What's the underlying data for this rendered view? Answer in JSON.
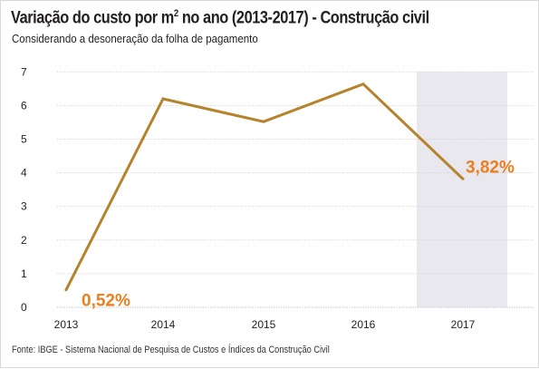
{
  "title_main": "Variação do custo por m",
  "title_sup": "2",
  "title_rest": " no ano (2013-2017) - Construção civil",
  "subtitle": "Considerando a desoneração da folha de pagamento",
  "source": "Fonte: IBGE - Sistema Nacional de Pesquisa de Custos e Índices da Construção Civil",
  "colors": {
    "line": "#b5832c",
    "label": "#ee7d1b",
    "grid": "#d5d5d5",
    "highlight": "#e8e8ee"
  },
  "chart_data": {
    "type": "line",
    "title": "Variação do custo por m² no ano (2013-2017) - Construção civil",
    "subtitle": "Considerando a desoneração da folha de pagamento",
    "xlabel": "",
    "ylabel": "",
    "x": [
      2013,
      2014,
      2015,
      2016,
      2017
    ],
    "series": [
      {
        "name": "",
        "values": [
          0.52,
          6.2,
          5.52,
          6.64,
          3.82
        ]
      }
    ],
    "ylim": [
      0,
      7
    ],
    "yticks": [
      0,
      1,
      2,
      3,
      4,
      5,
      6,
      7
    ],
    "grid": true,
    "highlight_x": 2017,
    "data_labels": [
      {
        "x": 2013,
        "text": "0,52%"
      },
      {
        "x": 2017,
        "text": "3,82%"
      }
    ]
  }
}
